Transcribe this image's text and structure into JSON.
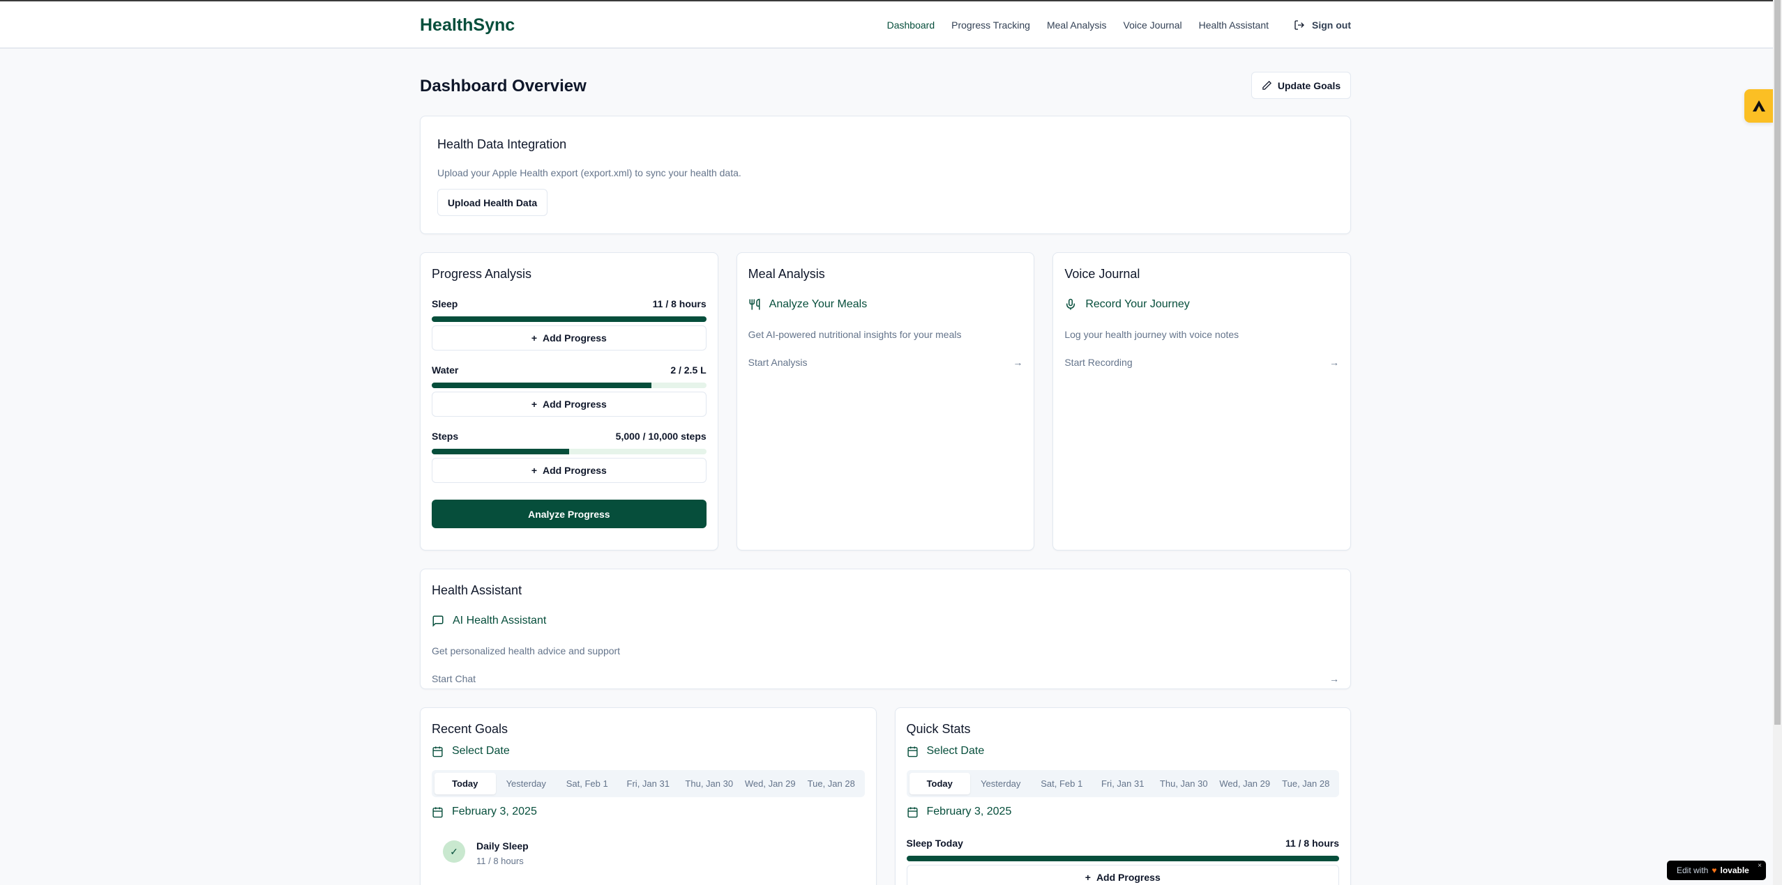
{
  "header": {
    "logo": "HealthSync",
    "nav": [
      "Dashboard",
      "Progress Tracking",
      "Meal Analysis",
      "Voice Journal",
      "Health Assistant"
    ],
    "active": "Dashboard",
    "sign_out": "Sign out"
  },
  "page": {
    "title": "Dashboard Overview",
    "update_goals": "Update Goals"
  },
  "integration": {
    "title": "Health Data Integration",
    "description": "Upload your Apple Health export (export.xml) to sync your health data.",
    "button": "Upload Health Data"
  },
  "progress": {
    "title": "Progress Analysis",
    "metrics": [
      {
        "label": "Sleep",
        "value": "11 / 8 hours",
        "percent": 100
      },
      {
        "label": "Water",
        "value": "2 / 2.5 L",
        "percent": 80
      },
      {
        "label": "Steps",
        "value": "5,000 / 10,000 steps",
        "percent": 50
      }
    ],
    "add_label": "Add Progress",
    "analyze": "Analyze Progress"
  },
  "meal": {
    "title": "Meal Analysis",
    "feature": "Analyze Your Meals",
    "description": "Get AI-powered nutritional insights for your meals",
    "link": "Start Analysis"
  },
  "voice": {
    "title": "Voice Journal",
    "feature": "Record Your Journey",
    "description": "Log your health journey with voice notes",
    "link": "Start Recording"
  },
  "assistant": {
    "title": "Health Assistant",
    "feature": "AI Health Assistant",
    "description": "Get personalized health advice and support",
    "link": "Start Chat"
  },
  "dates": {
    "select": "Select Date",
    "tabs": [
      "Today",
      "Yesterday",
      "Sat, Feb 1",
      "Fri, Jan 31",
      "Thu, Jan 30",
      "Wed, Jan 29",
      "Tue, Jan 28"
    ],
    "current": "February 3, 2025"
  },
  "recent_goals": {
    "title": "Recent Goals",
    "goal_name": "Daily Sleep",
    "goal_value": "11 / 8 hours"
  },
  "quick_stats": {
    "title": "Quick Stats",
    "label": "Sleep Today",
    "value": "11 / 8 hours",
    "percent": 100,
    "add_label": "Add Progress"
  },
  "badge": {
    "text": "Edit with",
    "brand": "lovable"
  },
  "colors": {
    "brand": "#064e3b",
    "widget": "#fbbf24"
  }
}
